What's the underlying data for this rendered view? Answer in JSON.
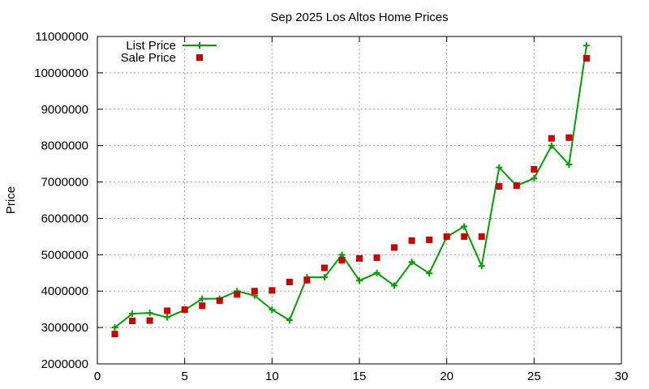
{
  "chart_data": {
    "type": "line",
    "title": "Sep 2025 Los Altos Home Prices",
    "xlabel": "",
    "ylabel": "Price",
    "xlim": [
      0,
      30
    ],
    "ylim": [
      2000000,
      11000000
    ],
    "x_ticks": [
      "0",
      "5",
      "10",
      "15",
      "20",
      "25",
      "30"
    ],
    "y_ticks": [
      "2000000",
      "3000000",
      "4000000",
      "5000000",
      "6000000",
      "7000000",
      "8000000",
      "9000000",
      "10000000",
      "11000000"
    ],
    "grid": true,
    "legend_position": "top-left",
    "x": [
      1,
      2,
      3,
      4,
      5,
      6,
      7,
      8,
      9,
      10,
      11,
      12,
      13,
      14,
      15,
      16,
      17,
      18,
      19,
      20,
      21,
      22,
      23,
      24,
      25,
      26,
      27,
      28
    ],
    "series": [
      {
        "name": "List Price",
        "style": "line-plus",
        "color": "#00a000",
        "values": [
          3000000,
          3380000,
          3400000,
          3280000,
          3480000,
          3790000,
          3790000,
          4000000,
          3880000,
          3490000,
          3200000,
          4380000,
          4380000,
          5000000,
          4290000,
          4500000,
          4150000,
          4800000,
          4490000,
          5490000,
          5780000,
          4690000,
          7400000,
          6900000,
          7100000,
          8000000,
          7480000,
          10750000
        ]
      },
      {
        "name": "Sale Price",
        "style": "square",
        "color": "#cc0000",
        "values": [
          2820000,
          3180000,
          3190000,
          3460000,
          3490000,
          3600000,
          3740000,
          3910000,
          4000000,
          4020000,
          4250000,
          4300000,
          4640000,
          4850000,
          4900000,
          4920000,
          5200000,
          5390000,
          5410000,
          5500000,
          5500000,
          5500000,
          6880000,
          6900000,
          7350000,
          8200000,
          8220000,
          10400000
        ]
      }
    ]
  }
}
